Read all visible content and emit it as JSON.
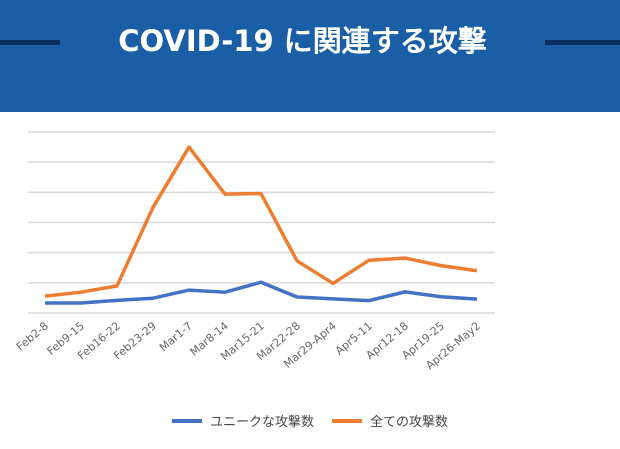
{
  "title": "COVID-19 に関連する攻撃",
  "colors": {
    "header": "#1a5fa6",
    "unique": "#4472c4",
    "all": "#ed7d31"
  },
  "chart_data": {
    "type": "line",
    "title": "COVID-19 に関連する攻撃",
    "xlabel": "",
    "ylabel": "",
    "ylim": [
      0,
      6
    ],
    "grid": true,
    "legend_position": "bottom",
    "categories": [
      "Feb2-8",
      "Feb9-15",
      "Feb16-22",
      "Feb23-29",
      "Mar1-7",
      "Mar8-14",
      "Mar15-21",
      "Mar22-28",
      "Mar29-Apr4",
      "Apr5-11",
      "Apr12-18",
      "Apr19-25",
      "Apr26-May2"
    ],
    "series": [
      {
        "name": "ユニークな攻撃数",
        "values": [
          0.33,
          0.33,
          0.42,
          0.49,
          0.76,
          0.69,
          1.02,
          0.53,
          0.47,
          0.41,
          0.7,
          0.54,
          0.46
        ]
      },
      {
        "name": "全ての攻撃数",
        "values": [
          0.56,
          0.69,
          0.9,
          3.5,
          5.5,
          3.94,
          3.96,
          1.73,
          0.98,
          1.75,
          1.82,
          1.57,
          1.4
        ]
      }
    ]
  }
}
